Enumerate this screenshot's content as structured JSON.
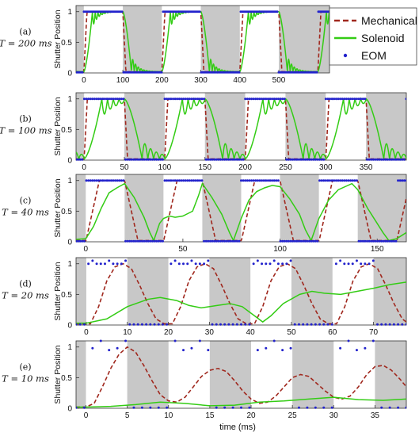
{
  "figure": {
    "ylabel": "Shutter Position",
    "xlabel": "time (ms)",
    "legend": [
      {
        "name": "Mechanical",
        "color": "#a0281e",
        "style": "dashed"
      },
      {
        "name": "Solenoid",
        "color": "#33cc14",
        "style": "solid"
      },
      {
        "name": "EOM",
        "color": "#2222cc",
        "style": "dots"
      }
    ],
    "shade_color": "#c8c8c8"
  },
  "chart_data": [
    {
      "type": "line",
      "panel_label": "(a)",
      "period_label": "T = 200 ms",
      "period_ms": 200,
      "xlim": [
        -20,
        630
      ],
      "ylim": [
        0,
        1.1
      ],
      "xticks": [
        0,
        100,
        200,
        300,
        400,
        500
      ],
      "yticks": [
        0,
        0.5,
        1
      ],
      "shaded_intervals": [
        [
          -20,
          0
        ],
        [
          100,
          200
        ],
        [
          300,
          400
        ],
        [
          500,
          630
        ]
      ],
      "series": [
        "Mechanical",
        "Solenoid",
        "EOM"
      ],
      "solenoid_style": {
        "rise_ms": 22,
        "fall_ms": 22,
        "bounce_amp": 0.25,
        "bounce_freq_per_ms": 0.07,
        "bounce_decay_ms": 15
      }
    },
    {
      "type": "line",
      "panel_label": "(b)",
      "period_label": "T = 100 ms",
      "period_ms": 100,
      "xlim": [
        -10,
        400
      ],
      "ylim": [
        0,
        1.1
      ],
      "xticks": [
        0,
        50,
        100,
        150,
        200,
        250,
        300,
        350
      ],
      "yticks": [
        0,
        0.5,
        1
      ],
      "shaded_intervals": [
        [
          -10,
          0
        ],
        [
          50,
          100
        ],
        [
          150,
          200
        ],
        [
          250,
          300
        ],
        [
          350,
          400
        ]
      ],
      "series": [
        "Mechanical",
        "Solenoid",
        "EOM"
      ],
      "solenoid_style": {
        "rise_ms": 22,
        "fall_ms": 22,
        "bounce_amp": 0.3,
        "bounce_freq_per_ms": 0.07,
        "bounce_decay_ms": 18
      }
    },
    {
      "type": "line",
      "panel_label": "(c)",
      "period_label": "T = 40 ms",
      "period_ms": 40,
      "xlim": [
        -5,
        165
      ],
      "ylim": [
        0,
        1.1
      ],
      "xticks": [
        0,
        50,
        100,
        150
      ],
      "yticks": [
        0,
        0.5,
        1
      ],
      "shaded_intervals": [
        [
          -5,
          0
        ],
        [
          20,
          40
        ],
        [
          60,
          80
        ],
        [
          100,
          120
        ],
        [
          140,
          165
        ]
      ],
      "series": [
        "Mechanical",
        "Solenoid",
        "EOM"
      ],
      "solenoid_points": [
        [
          -5,
          0.04
        ],
        [
          0,
          0.05
        ],
        [
          4,
          0.25
        ],
        [
          8,
          0.55
        ],
        [
          12,
          0.8
        ],
        [
          16,
          0.88
        ],
        [
          20,
          0.95
        ],
        [
          25,
          0.72
        ],
        [
          30,
          0.4
        ],
        [
          33,
          0.15
        ],
        [
          35,
          0.02
        ],
        [
          38,
          0.3
        ],
        [
          40,
          0.38
        ],
        [
          43,
          0.42
        ],
        [
          46,
          0.4
        ],
        [
          50,
          0.42
        ],
        [
          55,
          0.5
        ],
        [
          58,
          0.75
        ],
        [
          60,
          0.95
        ],
        [
          65,
          0.72
        ],
        [
          70,
          0.45
        ],
        [
          74,
          0.15
        ],
        [
          76,
          0.02
        ],
        [
          80,
          0.38
        ],
        [
          84,
          0.68
        ],
        [
          88,
          0.82
        ],
        [
          92,
          0.88
        ],
        [
          96,
          0.92
        ],
        [
          100,
          0.9
        ],
        [
          105,
          0.7
        ],
        [
          110,
          0.45
        ],
        [
          113,
          0.2
        ],
        [
          116,
          0.02
        ],
        [
          120,
          0.38
        ],
        [
          125,
          0.68
        ],
        [
          130,
          0.85
        ],
        [
          137,
          0.95
        ],
        [
          140,
          0.85
        ],
        [
          145,
          0.55
        ],
        [
          150,
          0.3
        ],
        [
          153,
          0.15
        ],
        [
          156,
          0.02
        ],
        [
          160,
          0.05
        ],
        [
          165,
          0.15
        ]
      ],
      "mechanical_style": {
        "rise_ms": 7,
        "fall_ms": 7
      }
    },
    {
      "type": "line",
      "panel_label": "(d)",
      "period_label": "T = 20 ms",
      "period_ms": 20,
      "xlim": [
        -2.5,
        78
      ],
      "ylim": [
        0,
        1.1
      ],
      "xticks": [
        0,
        10,
        20,
        30,
        40,
        50,
        60,
        70
      ],
      "yticks": [
        0,
        0.5,
        1
      ],
      "shaded_intervals": [
        [
          -2.5,
          0
        ],
        [
          10,
          20
        ],
        [
          30,
          40
        ],
        [
          50,
          60
        ],
        [
          70,
          78
        ]
      ],
      "series": [
        "Mechanical",
        "Solenoid",
        "EOM"
      ],
      "mechanical_points": [
        [
          -2.5,
          0.02
        ],
        [
          1,
          0.02
        ],
        [
          3,
          0.3
        ],
        [
          5,
          0.72
        ],
        [
          7,
          0.95
        ],
        [
          9,
          1.0
        ],
        [
          11,
          0.92
        ],
        [
          13,
          0.65
        ],
        [
          15,
          0.35
        ],
        [
          17,
          0.1
        ],
        [
          19,
          0.02
        ],
        [
          21,
          0.02
        ],
        [
          23,
          0.3
        ],
        [
          25,
          0.72
        ],
        [
          27,
          0.95
        ],
        [
          29,
          1.0
        ],
        [
          31,
          0.92
        ],
        [
          33,
          0.65
        ],
        [
          35,
          0.35
        ],
        [
          37,
          0.1
        ],
        [
          39,
          0.02
        ],
        [
          41,
          0.02
        ],
        [
          43,
          0.3
        ],
        [
          45,
          0.72
        ],
        [
          47,
          0.95
        ],
        [
          49,
          1.0
        ],
        [
          51,
          0.92
        ],
        [
          53,
          0.65
        ],
        [
          55,
          0.35
        ],
        [
          57,
          0.1
        ],
        [
          59,
          0.02
        ],
        [
          61,
          0.02
        ],
        [
          63,
          0.3
        ],
        [
          65,
          0.72
        ],
        [
          67,
          0.95
        ],
        [
          69,
          1.0
        ],
        [
          71,
          0.92
        ],
        [
          73,
          0.65
        ],
        [
          75,
          0.35
        ],
        [
          77,
          0.1
        ],
        [
          78,
          0.05
        ]
      ],
      "solenoid_points": [
        [
          -2.5,
          0.03
        ],
        [
          0,
          0.03
        ],
        [
          5,
          0.1
        ],
        [
          10,
          0.3
        ],
        [
          15,
          0.42
        ],
        [
          18,
          0.45
        ],
        [
          22,
          0.4
        ],
        [
          25,
          0.32
        ],
        [
          28,
          0.28
        ],
        [
          32,
          0.32
        ],
        [
          35,
          0.35
        ],
        [
          38,
          0.3
        ],
        [
          41,
          0.15
        ],
        [
          43,
          0.05
        ],
        [
          45,
          0.15
        ],
        [
          48,
          0.35
        ],
        [
          52,
          0.5
        ],
        [
          55,
          0.55
        ],
        [
          58,
          0.52
        ],
        [
          62,
          0.5
        ],
        [
          66,
          0.55
        ],
        [
          70,
          0.6
        ],
        [
          74,
          0.66
        ],
        [
          78,
          0.7
        ]
      ]
    },
    {
      "type": "line",
      "panel_label": "(e)",
      "period_label": "T = 10 ms",
      "period_ms": 10,
      "xlim": [
        -1.2,
        38.8
      ],
      "ylim": [
        0,
        1.1
      ],
      "xticks": [
        0,
        5,
        10,
        15,
        20,
        25,
        30,
        35
      ],
      "yticks": [
        0,
        0.5,
        1
      ],
      "shaded_intervals": [
        [
          -1.2,
          0
        ],
        [
          5,
          10
        ],
        [
          15,
          20
        ],
        [
          25,
          30
        ],
        [
          35,
          38.8
        ]
      ],
      "series": [
        "Mechanical",
        "Solenoid",
        "EOM"
      ],
      "mechanical_points": [
        [
          -1.2,
          0.02
        ],
        [
          0,
          0.02
        ],
        [
          1,
          0.08
        ],
        [
          2,
          0.35
        ],
        [
          3,
          0.65
        ],
        [
          4,
          0.88
        ],
        [
          5,
          1.0
        ],
        [
          6,
          0.92
        ],
        [
          7,
          0.7
        ],
        [
          8,
          0.45
        ],
        [
          9,
          0.22
        ],
        [
          10,
          0.12
        ],
        [
          11,
          0.1
        ],
        [
          12,
          0.18
        ],
        [
          13,
          0.35
        ],
        [
          14,
          0.52
        ],
        [
          15,
          0.62
        ],
        [
          16,
          0.65
        ],
        [
          17,
          0.6
        ],
        [
          18,
          0.45
        ],
        [
          19,
          0.28
        ],
        [
          20,
          0.15
        ],
        [
          21,
          0.08
        ],
        [
          22,
          0.1
        ],
        [
          23,
          0.2
        ],
        [
          24,
          0.35
        ],
        [
          25,
          0.5
        ],
        [
          26,
          0.55
        ],
        [
          27,
          0.52
        ],
        [
          28,
          0.4
        ],
        [
          29,
          0.28
        ],
        [
          30,
          0.18
        ],
        [
          31,
          0.15
        ],
        [
          32,
          0.2
        ],
        [
          33,
          0.35
        ],
        [
          34,
          0.55
        ],
        [
          35,
          0.68
        ],
        [
          36,
          0.7
        ],
        [
          37,
          0.62
        ],
        [
          38,
          0.48
        ],
        [
          38.8,
          0.35
        ]
      ],
      "solenoid_points": [
        [
          -1.2,
          0.02
        ],
        [
          0,
          0.02
        ],
        [
          3,
          0.03
        ],
        [
          6,
          0.06
        ],
        [
          9,
          0.1
        ],
        [
          12,
          0.08
        ],
        [
          15,
          0.04
        ],
        [
          18,
          0.05
        ],
        [
          21,
          0.1
        ],
        [
          24,
          0.12
        ],
        [
          27,
          0.15
        ],
        [
          30,
          0.18
        ],
        [
          33,
          0.14
        ],
        [
          36,
          0.13
        ],
        [
          38.8,
          0.15
        ]
      ]
    }
  ]
}
